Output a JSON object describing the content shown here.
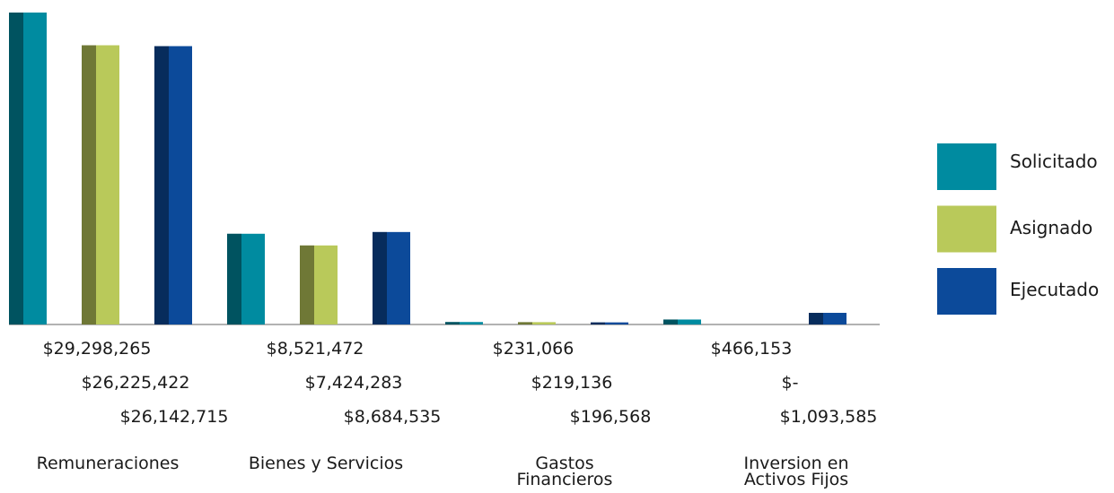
{
  "chart_data": {
    "type": "bar",
    "categories": [
      "Remuneraciones",
      "Bienes y Servicios",
      "Gastos\nFinancieros",
      "Inversion en\nActivos Fijos"
    ],
    "series": [
      {
        "name": "Solicitado",
        "color": "#008ba0",
        "values": [
          29298265,
          8521472,
          231066,
          466153
        ],
        "value_labels": [
          "$29,298,265",
          "$8,521,472",
          "$231,066",
          "$466,153"
        ]
      },
      {
        "name": "Asignado",
        "color": "#b9c95a",
        "values": [
          26225422,
          7424283,
          219136,
          0
        ],
        "value_labels": [
          "$26,225,422",
          "$7,424,283",
          "$219,136",
          "$-"
        ]
      },
      {
        "name": "Ejecutado",
        "color": "#0c4a9a",
        "values": [
          26142715,
          8684535,
          196568,
          1093585
        ],
        "value_labels": [
          "$26,142,715",
          "$8,684,535",
          "$196,568",
          "$1,093,585"
        ]
      }
    ],
    "legend": "right"
  }
}
